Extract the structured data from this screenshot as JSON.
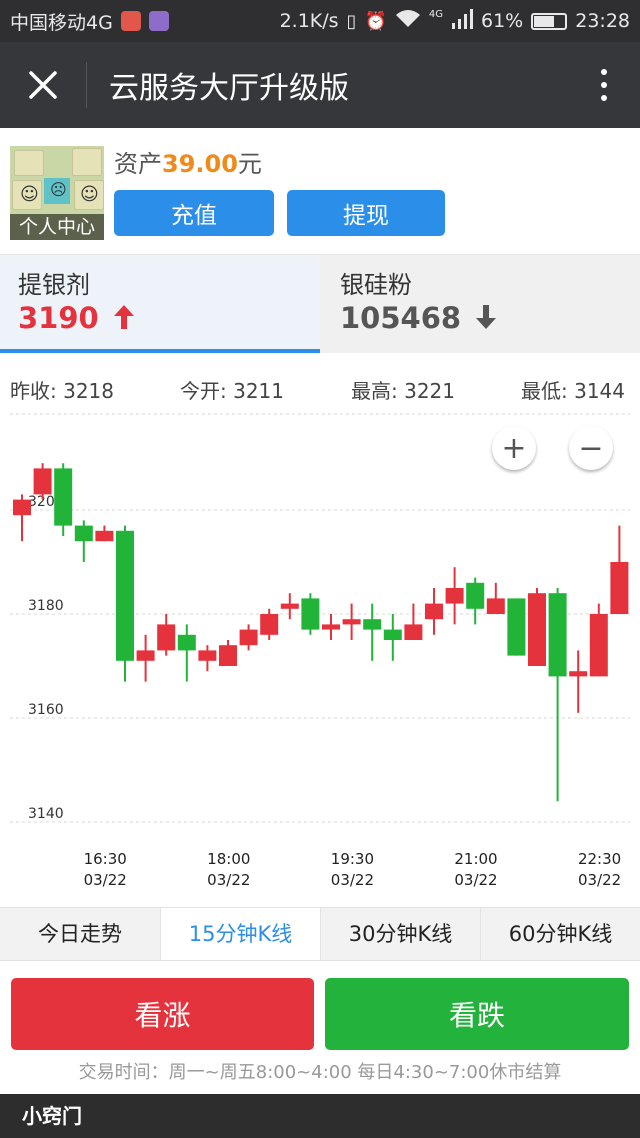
{
  "status_bar": {
    "carrier": "中国移动4G",
    "net_speed": "2.1K/s",
    "network_type": "4G",
    "battery": "61%",
    "battery_level": 0.61,
    "time": "23:28"
  },
  "header": {
    "title": "云服务大厅升级版",
    "close_icon": "close-icon",
    "more_icon": "more-vertical-icon"
  },
  "account": {
    "avatar_caption": "个人中心",
    "asset_label": "资产",
    "asset_value": "39.00",
    "asset_unit": "元",
    "recharge_label": "充值",
    "withdraw_label": "提现"
  },
  "products": [
    {
      "name": "提银剂",
      "price": "3190",
      "trend": "up",
      "color": "#e5333d"
    },
    {
      "name": "银硅粉",
      "price": "105468",
      "trend": "down",
      "color": "#555555"
    }
  ],
  "stats": {
    "prev_close": "昨收: 3218",
    "open": "今开: 3211",
    "high": "最高: 3221",
    "low": "最低: 3144"
  },
  "zoom": {
    "in_label": "+",
    "out_label": "−"
  },
  "chart_data": {
    "type": "candlestick",
    "up_color": "#e5333d",
    "down_color": "#22b339",
    "ylim": [
      3138,
      3212
    ],
    "y_ticks": [
      "3200",
      "3180",
      "3160",
      "3140"
    ],
    "y_tick_values": [
      3200,
      3180,
      3160,
      3140
    ],
    "x_ticks": [
      {
        "time": "16:30",
        "date": "03/22",
        "index": 2
      },
      {
        "time": "18:00",
        "date": "03/22",
        "index": 8
      },
      {
        "time": "19:30",
        "date": "03/22",
        "index": 14
      },
      {
        "time": "21:00",
        "date": "03/22",
        "index": 20
      },
      {
        "time": "22:30",
        "date": "03/22",
        "index": 26
      }
    ],
    "candles": [
      {
        "o": 3199,
        "c": 3202,
        "h": 3203,
        "l": 3194
      },
      {
        "o": 3203,
        "c": 3208,
        "h": 3209,
        "l": 3202
      },
      {
        "o": 3208,
        "c": 3197,
        "h": 3209,
        "l": 3195
      },
      {
        "o": 3197,
        "c": 3194,
        "h": 3198,
        "l": 3190
      },
      {
        "o": 3194,
        "c": 3196,
        "h": 3197,
        "l": 3194
      },
      {
        "o": 3196,
        "c": 3171,
        "h": 3197,
        "l": 3167
      },
      {
        "o": 3171,
        "c": 3173,
        "h": 3176,
        "l": 3167
      },
      {
        "o": 3173,
        "c": 3178,
        "h": 3180,
        "l": 3172
      },
      {
        "o": 3176,
        "c": 3173,
        "h": 3178,
        "l": 3167
      },
      {
        "o": 3171,
        "c": 3173,
        "h": 3174,
        "l": 3169
      },
      {
        "o": 3170,
        "c": 3174,
        "h": 3175,
        "l": 3170
      },
      {
        "o": 3174,
        "c": 3177,
        "h": 3178,
        "l": 3173
      },
      {
        "o": 3176,
        "c": 3180,
        "h": 3181,
        "l": 3175
      },
      {
        "o": 3181,
        "c": 3182,
        "h": 3184,
        "l": 3179
      },
      {
        "o": 3183,
        "c": 3177,
        "h": 3184,
        "l": 3176
      },
      {
        "o": 3177,
        "c": 3178,
        "h": 3180,
        "l": 3175
      },
      {
        "o": 3178,
        "c": 3179,
        "h": 3182,
        "l": 3175
      },
      {
        "o": 3179,
        "c": 3177,
        "h": 3182,
        "l": 3171
      },
      {
        "o": 3177,
        "c": 3175,
        "h": 3180,
        "l": 3171
      },
      {
        "o": 3175,
        "c": 3178,
        "h": 3182,
        "l": 3175
      },
      {
        "o": 3179,
        "c": 3182,
        "h": 3185,
        "l": 3176
      },
      {
        "o": 3182,
        "c": 3185,
        "h": 3189,
        "l": 3178
      },
      {
        "o": 3186,
        "c": 3181,
        "h": 3187,
        "l": 3178
      },
      {
        "o": 3180,
        "c": 3183,
        "h": 3186,
        "l": 3180
      },
      {
        "o": 3183,
        "c": 3172,
        "h": 3183,
        "l": 3172
      },
      {
        "o": 3170,
        "c": 3184,
        "h": 3185,
        "l": 3170
      },
      {
        "o": 3184,
        "c": 3168,
        "h": 3185,
        "l": 3144
      },
      {
        "o": 3168,
        "c": 3169,
        "h": 3173,
        "l": 3161
      },
      {
        "o": 3168,
        "c": 3180,
        "h": 3182,
        "l": 3168
      },
      {
        "o": 3180,
        "c": 3190,
        "h": 3197,
        "l": 3180
      }
    ]
  },
  "periods": [
    {
      "label": "今日走势",
      "active": false
    },
    {
      "label": "15分钟K线",
      "active": true
    },
    {
      "label": "30分钟K线",
      "active": false
    },
    {
      "label": "60分钟K线",
      "active": false
    }
  ],
  "trade": {
    "buy_up_label": "看涨",
    "buy_up_color": "#e5333d",
    "buy_down_label": "看跌",
    "buy_down_color": "#23b23c",
    "hours": "交易时间：周一~周五8:00~4:00 每日4:30~7:00休市结算"
  },
  "footer": {
    "brand": "小窍门"
  }
}
